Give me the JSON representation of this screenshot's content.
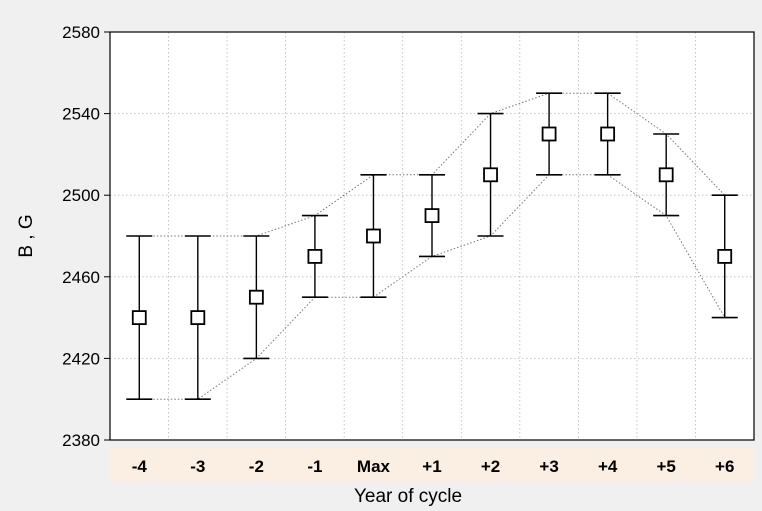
{
  "chart_data": {
    "type": "scatter",
    "xlabel": "Year of cycle",
    "ylabel": "B , G",
    "ylim": [
      2380,
      2580
    ],
    "yticks": [
      2380,
      2420,
      2460,
      2500,
      2540,
      2580
    ],
    "categories": [
      "-4",
      "-3",
      "-2",
      "-1",
      "Max",
      "+1",
      "+2",
      "+3",
      "+4",
      "+5",
      "+6"
    ],
    "series": [
      {
        "values": [
          2440,
          2440,
          2450,
          2470,
          2480,
          2490,
          2510,
          2530,
          2530,
          2510,
          2470
        ],
        "lower": [
          2400,
          2400,
          2420,
          2450,
          2450,
          2470,
          2480,
          2510,
          2510,
          2490,
          2440
        ],
        "upper": [
          2480,
          2480,
          2480,
          2490,
          2510,
          2510,
          2540,
          2550,
          2550,
          2530,
          2500
        ]
      }
    ],
    "marker": "open-square",
    "error_bars": true,
    "envelope": "dotted",
    "grid": true,
    "x_tick_band_color": "#fbeee3",
    "background_color": "#f0f0f0",
    "plot_background_color": "#ffffff"
  }
}
